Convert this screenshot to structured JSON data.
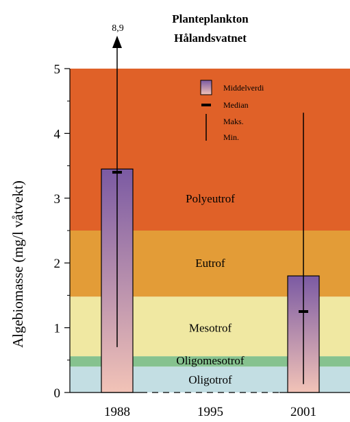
{
  "chart_data": {
    "type": "bar",
    "title_lines": [
      "Planteplankton",
      "Hålandsvatnet"
    ],
    "ylabel": "Algebiomasse (mg/l våtvekt)",
    "xlabel": "",
    "ylim": [
      0,
      5
    ],
    "yticks": [
      "0",
      "1",
      "2",
      "3",
      "4",
      "5"
    ],
    "categories": [
      "1988",
      "1995",
      "2001"
    ],
    "mean": [
      3.45,
      null,
      1.8
    ],
    "median": [
      3.4,
      null,
      1.25
    ],
    "max": [
      8.9,
      null,
      4.32
    ],
    "min": [
      0.7,
      null,
      0.13
    ],
    "max_annotation": "8,9",
    "bands": [
      {
        "name": "Oligotrof",
        "from": 0,
        "to": 0.4,
        "color": "#c3dee3"
      },
      {
        "name": "Oligomesotrof",
        "from": 0.4,
        "to": 0.56,
        "color": "#86c28f"
      },
      {
        "name": "Mesotrof",
        "from": 0.56,
        "to": 1.48,
        "color": "#f0e8a2"
      },
      {
        "name": "Eutrof",
        "from": 1.48,
        "to": 2.5,
        "color": "#e39c37"
      },
      {
        "name": "Polyeutrof",
        "from": 2.5,
        "to": 5,
        "color": "#e06128"
      }
    ],
    "legend": {
      "placement": "top-right",
      "entries": [
        "Middelverdi",
        "Median",
        "Maks.",
        "Min."
      ]
    },
    "bar_gradient": {
      "top": "#7b5aa3",
      "bottom": "#f2c3b7"
    }
  }
}
